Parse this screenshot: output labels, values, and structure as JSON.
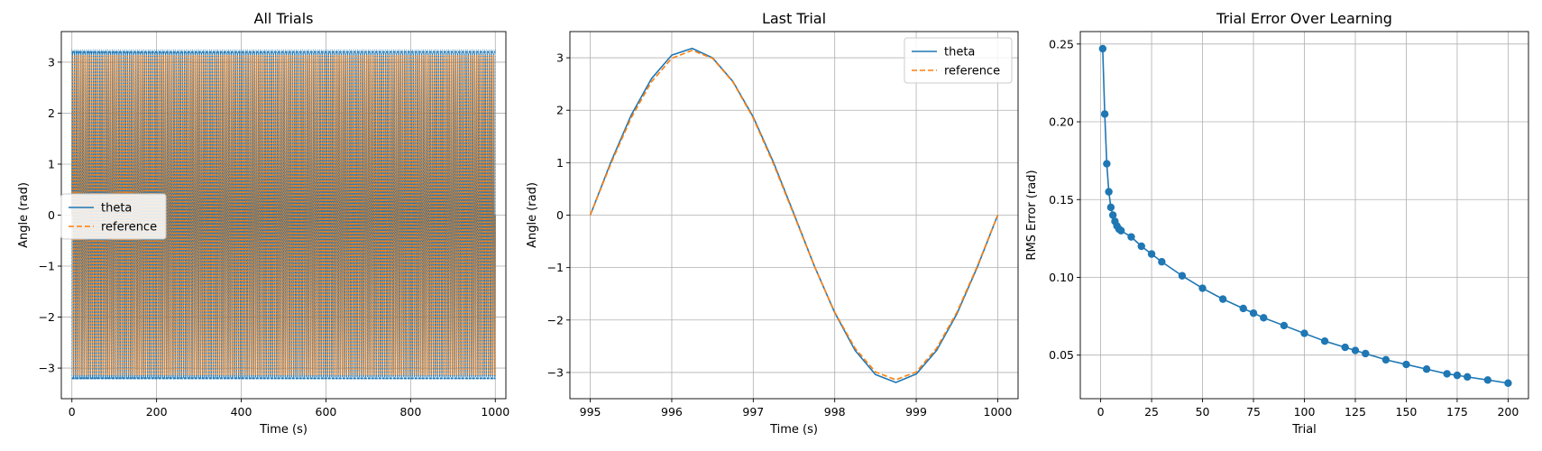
{
  "chart_data": [
    {
      "type": "line",
      "title": "All Trials",
      "xlabel": "Time (s)",
      "ylabel": "Angle (rad)",
      "xlim": [
        -25,
        1025
      ],
      "ylim": [
        -3.6,
        3.6
      ],
      "xticks": [
        0,
        200,
        400,
        600,
        800,
        1000
      ],
      "xtick_labels": [
        "0",
        "200",
        "400",
        "600",
        "800",
        "1000"
      ],
      "yticks": [
        -3,
        -2,
        -1,
        0,
        1,
        2,
        3
      ],
      "ytick_labels": [
        "−3",
        "−2",
        "−1",
        "0",
        "1",
        "2",
        "3"
      ],
      "grid": true,
      "legend_position": "center-left",
      "x_range": [
        0,
        1000
      ],
      "period": 5,
      "trials": 200,
      "series": [
        {
          "name": "theta",
          "color": "#1f77b4",
          "style": "solid",
          "amplitude": 3.17
        },
        {
          "name": "reference",
          "color": "#ff7f0e",
          "style": "dashed",
          "amplitude": 3.14159
        }
      ]
    },
    {
      "type": "line",
      "title": "Last Trial",
      "xlabel": "Time (s)",
      "ylabel": "Angle (rad)",
      "xlim": [
        994.75,
        1000.25
      ],
      "ylim": [
        -3.5,
        3.5
      ],
      "xticks": [
        995,
        996,
        997,
        998,
        999,
        1000
      ],
      "xtick_labels": [
        "995",
        "996",
        "997",
        "998",
        "999",
        "1000"
      ],
      "yticks": [
        -3,
        -2,
        -1,
        0,
        1,
        2,
        3
      ],
      "ytick_labels": [
        "−3",
        "−2",
        "−1",
        "0",
        "1",
        "2",
        "3"
      ],
      "grid": true,
      "legend_position": "top-right",
      "series": [
        {
          "name": "theta",
          "color": "#1f77b4",
          "style": "solid",
          "x": [
            995,
            995.25,
            995.5,
            995.75,
            996,
            996.25,
            996.5,
            996.75,
            997,
            997.25,
            997.5,
            997.75,
            998,
            998.25,
            998.5,
            998.75,
            999,
            999.25,
            999.5,
            999.75,
            1000
          ],
          "y": [
            0,
            1.0,
            1.9,
            2.6,
            3.05,
            3.18,
            3.0,
            2.55,
            1.87,
            1.0,
            0.02,
            -0.97,
            -1.86,
            -2.58,
            -3.04,
            -3.19,
            -3.03,
            -2.58,
            -1.88,
            -0.99,
            0
          ]
        },
        {
          "name": "reference",
          "color": "#ff7f0e",
          "style": "dashed",
          "x": [
            995,
            995.25,
            995.5,
            995.75,
            996,
            996.25,
            996.5,
            996.75,
            997,
            997.25,
            997.5,
            997.75,
            998,
            998.25,
            998.5,
            998.75,
            999,
            999.25,
            999.5,
            999.75,
            1000
          ],
          "y": [
            0,
            0.97,
            1.85,
            2.54,
            2.99,
            3.14,
            2.99,
            2.54,
            1.85,
            0.97,
            0,
            -0.97,
            -1.85,
            -2.54,
            -2.99,
            -3.14,
            -2.99,
            -2.54,
            -1.85,
            -0.97,
            0
          ]
        }
      ]
    },
    {
      "type": "line",
      "title": "Trial Error Over Learning",
      "xlabel": "Trial",
      "ylabel": "RMS Error (rad)",
      "xlim": [
        -10,
        210
      ],
      "ylim": [
        0.022,
        0.258
      ],
      "xticks": [
        0,
        25,
        50,
        75,
        100,
        125,
        150,
        175,
        200
      ],
      "xtick_labels": [
        "0",
        "25",
        "50",
        "75",
        "100",
        "125",
        "150",
        "175",
        "200"
      ],
      "yticks": [
        0.05,
        0.1,
        0.15,
        0.2,
        0.25
      ],
      "ytick_labels": [
        "0.05",
        "0.10",
        "0.15",
        "0.20",
        "0.25"
      ],
      "grid": true,
      "markers": true,
      "series": [
        {
          "name": "",
          "color": "#1f77b4",
          "style": "solid-markers",
          "x": [
            1,
            2,
            3,
            4,
            5,
            6,
            7,
            8,
            9,
            10,
            15,
            20,
            25,
            30,
            40,
            50,
            60,
            70,
            75,
            80,
            90,
            100,
            110,
            120,
            125,
            130,
            140,
            150,
            160,
            170,
            175,
            180,
            190,
            200
          ],
          "y": [
            0.247,
            0.205,
            0.173,
            0.155,
            0.145,
            0.14,
            0.136,
            0.133,
            0.131,
            0.13,
            0.126,
            0.12,
            0.115,
            0.11,
            0.101,
            0.093,
            0.086,
            0.08,
            0.077,
            0.074,
            0.069,
            0.064,
            0.059,
            0.055,
            0.053,
            0.051,
            0.047,
            0.044,
            0.041,
            0.038,
            0.037,
            0.036,
            0.034,
            0.032
          ]
        }
      ]
    }
  ]
}
